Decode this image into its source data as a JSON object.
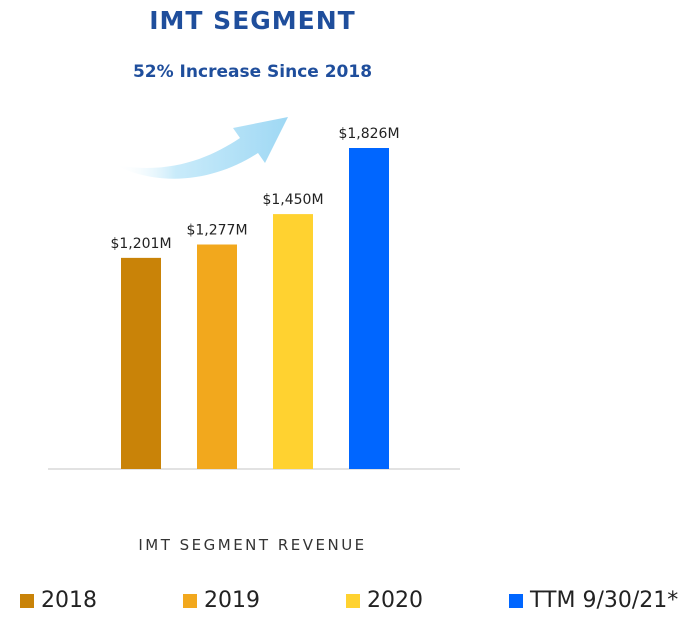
{
  "title": "IMT SEGMENT",
  "subtitle": "52% Increase Since 2018",
  "caption": "IMT SEGMENT REVENUE",
  "colors": {
    "title": "#1F4E9C",
    "arrow": "#A8DCF5",
    "baseline": "#D9D9D9"
  },
  "chart_data": {
    "type": "bar",
    "categories": [
      "2018",
      "2019",
      "2020",
      "TTM 9/30/21*"
    ],
    "values": [
      1201,
      1277,
      1450,
      1826
    ],
    "data_labels": [
      "$1,201M",
      "$1,277M",
      "$1,450M",
      "$1,826M"
    ],
    "colors": [
      "#C98308",
      "#F2A81D",
      "#FFD230",
      "#0066FF"
    ],
    "unit": "$M",
    "ylim": [
      0,
      1826
    ],
    "title": "IMT SEGMENT",
    "subtitle": "52% Increase Since 2018",
    "xlabel": "IMT SEGMENT REVENUE",
    "ylabel": "",
    "grid": false,
    "legend_position": "bottom",
    "annotation": "upward-arrow"
  },
  "legend": [
    {
      "label": "2018",
      "color": "#C98308"
    },
    {
      "label": "2019",
      "color": "#F2A81D"
    },
    {
      "label": "2020",
      "color": "#FFD230"
    },
    {
      "label": "TTM 9/30/21*",
      "color": "#0066FF"
    }
  ]
}
